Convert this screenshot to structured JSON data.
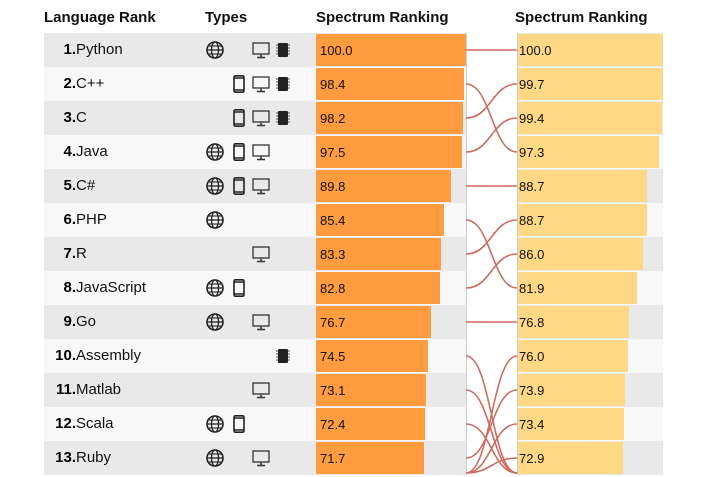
{
  "chart_data": {
    "type": "bar",
    "headers": {
      "rank": "Language Rank",
      "types": "Types",
      "left": "Spectrum Ranking",
      "right": "Spectrum Ranking"
    },
    "rows": [
      {
        "rank": "1.",
        "name": "Python",
        "types": [
          "web",
          "desktop",
          "embedded"
        ],
        "left": 100.0,
        "right": "100.0",
        "right_value": 100.0
      },
      {
        "rank": "2.",
        "name": "C++",
        "types": [
          "mobile",
          "desktop",
          "embedded"
        ],
        "left": 98.4,
        "right": "99.7",
        "right_value": 99.7
      },
      {
        "rank": "3.",
        "name": "C",
        "types": [
          "mobile",
          "desktop",
          "embedded"
        ],
        "left": 98.2,
        "right": "99.4",
        "right_value": 99.4
      },
      {
        "rank": "4.",
        "name": "Java",
        "types": [
          "web",
          "mobile",
          "desktop"
        ],
        "left": 97.5,
        "right": "97.3",
        "right_value": 97.3
      },
      {
        "rank": "5.",
        "name": "C#",
        "types": [
          "web",
          "mobile",
          "desktop"
        ],
        "left": 89.8,
        "right": "88.7",
        "right_value": 88.7
      },
      {
        "rank": "6.",
        "name": "PHP",
        "types": [
          "web"
        ],
        "left": 85.4,
        "right": "88.7",
        "right_value": 88.7
      },
      {
        "rank": "7.",
        "name": "R",
        "types": [
          "desktop"
        ],
        "left": 83.3,
        "right": "86.0",
        "right_value": 86.0
      },
      {
        "rank": "8.",
        "name": "JavaScript",
        "types": [
          "web",
          "mobile"
        ],
        "left": 82.8,
        "right": "81.9",
        "right_value": 81.9
      },
      {
        "rank": "9.",
        "name": "Go",
        "types": [
          "web",
          "desktop"
        ],
        "left": 76.7,
        "right": "76.8",
        "right_value": 76.8
      },
      {
        "rank": "10.",
        "name": "Assembly",
        "types": [
          "embedded"
        ],
        "left": 74.5,
        "right": "76.0",
        "right_value": 76.0
      },
      {
        "rank": "11.",
        "name": "Matlab",
        "types": [
          "desktop"
        ],
        "left": 73.1,
        "right": "73.9",
        "right_value": 73.9
      },
      {
        "rank": "12.",
        "name": "Scala",
        "types": [
          "web",
          "mobile"
        ],
        "left": 72.4,
        "right": "73.4",
        "right_value": 73.4
      },
      {
        "rank": "13.",
        "name": "Ruby",
        "types": [
          "web",
          "desktop"
        ],
        "left": 71.7,
        "right": "72.9",
        "right_value": 72.9
      }
    ],
    "left_labels": [
      "100.0",
      "98.4",
      "98.2",
      "97.5",
      "89.8",
      "85.4",
      "83.3",
      "82.8",
      "76.7",
      "74.5",
      "73.1",
      "72.4",
      "71.7"
    ],
    "links": [
      [
        1,
        1
      ],
      [
        2,
        4
      ],
      [
        3,
        2
      ],
      [
        4,
        3
      ],
      [
        5,
        5
      ],
      [
        6,
        8
      ],
      [
        7,
        6
      ],
      [
        8,
        7
      ],
      [
        9,
        9
      ],
      [
        10,
        null
      ],
      [
        11,
        null
      ],
      [
        12,
        null
      ],
      [
        13,
        11
      ],
      [
        null,
        10
      ],
      [
        null,
        12
      ],
      [
        null,
        13
      ]
    ],
    "xlim": [
      0,
      100
    ],
    "colors": {
      "left_bar": "#ff9c3f",
      "right_bar": "#ffd885",
      "link": "#cd6c5f",
      "row_dark": "#e9e9e9",
      "row_light": "#f8f8f8"
    }
  }
}
